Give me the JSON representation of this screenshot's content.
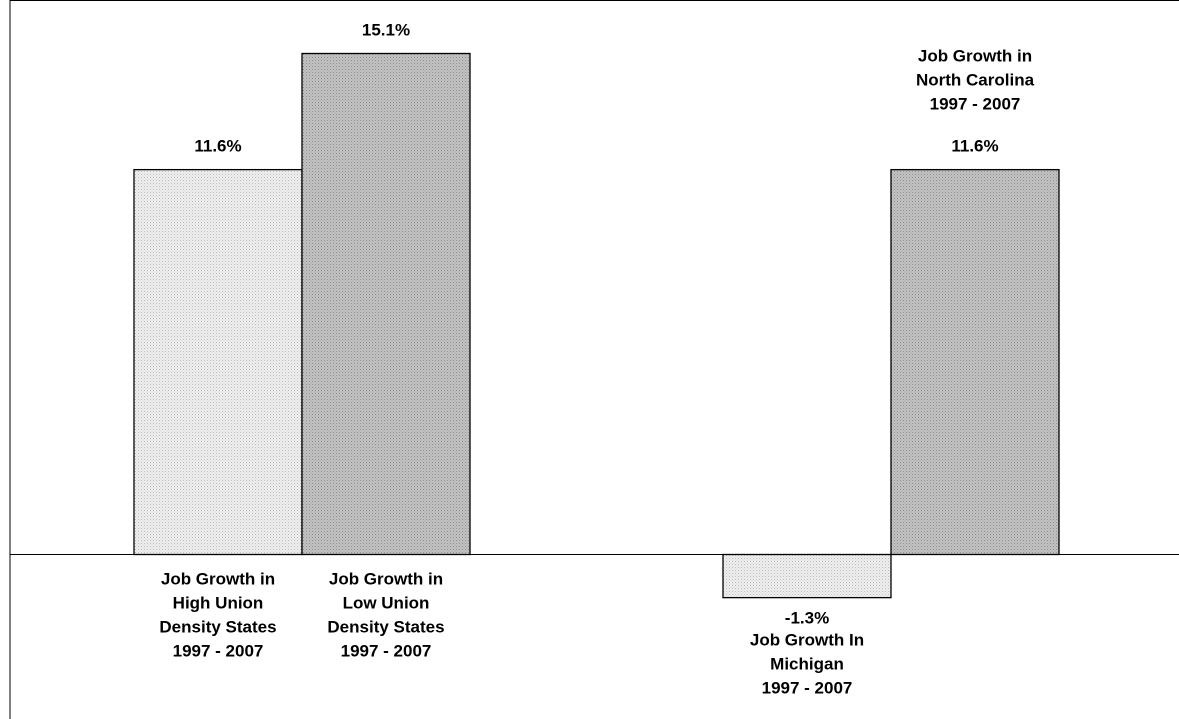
{
  "chart_data": {
    "type": "bar",
    "bars": [
      {
        "label": [
          "Job Growth in",
          "High Union",
          "Density States",
          "1997 - 2007"
        ],
        "value": 11.6,
        "value_label": "11.6%",
        "style": "light"
      },
      {
        "label": [
          "Job Growth in",
          "Low Union",
          "Density States",
          "1997 - 2007"
        ],
        "value": 15.1,
        "value_label": "15.1%",
        "style": "dark"
      },
      {
        "label": [
          "Job Growth In",
          "Michigan",
          "1997 - 2007"
        ],
        "value": -1.3,
        "value_label": "-1.3%",
        "style": "light"
      },
      {
        "label": [
          "Job Growth in",
          "North Carolina",
          "1997 - 2007"
        ],
        "value": 11.6,
        "value_label": "11.6%",
        "style": "dark"
      }
    ],
    "ylim": [
      -2.2,
      16.5
    ],
    "grid": false,
    "legend": "none",
    "colors": {
      "light": "#e8e8e8",
      "dark": "#b8b8b8",
      "outline": "#000000"
    }
  }
}
